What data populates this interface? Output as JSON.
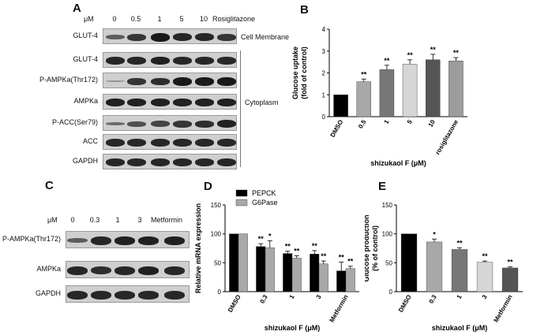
{
  "panel_a": {
    "label": "A",
    "unit": "μM",
    "lanes": [
      "0",
      "0.5",
      "1",
      "5",
      "10",
      "Rosiglitazone"
    ],
    "rows": [
      "GLUT-4",
      "GLUT-4",
      "P-AMPKa(Thr172)",
      "AMPKa",
      "P-ACC(Ser79)",
      "ACC",
      "GAPDH"
    ],
    "membrane_label": "Cell Membrane",
    "cytoplasm_label": "Cytoplasm"
  },
  "panel_c": {
    "label": "C",
    "unit": "μM",
    "lanes": [
      "0",
      "0.3",
      "1",
      "3",
      "Metformin"
    ],
    "rows": [
      "P-AMPKa(Thr172)",
      "AMPKa",
      "GAPDH"
    ]
  },
  "chart_data": [
    {
      "panel": "B",
      "type": "bar",
      "categories": [
        "DMSO",
        "0.5",
        "1",
        "5",
        "10",
        "rosiglitazone"
      ],
      "values": [
        1.0,
        1.6,
        2.15,
        2.4,
        2.6,
        2.55
      ],
      "errors": [
        0.0,
        0.12,
        0.2,
        0.2,
        0.25,
        0.15
      ],
      "significance": [
        "",
        "**",
        "**",
        "**",
        "**",
        "**"
      ],
      "colors": [
        "#000000",
        "#a8a8a8",
        "#777777",
        "#d6d6d6",
        "#555555",
        "#9c9c9c"
      ],
      "xlabel": "shizukaol F (μM)",
      "ylabel_line1": "Glucose uptake",
      "ylabel_line2": "(fold of control)",
      "ylim": [
        0,
        4
      ],
      "yticks": [
        "0",
        "1",
        "2",
        "3",
        "4"
      ]
    },
    {
      "panel": "D",
      "type": "bar",
      "categories": [
        "DMSO",
        "0.3",
        "1",
        "3",
        "Metformin"
      ],
      "series": [
        {
          "name": "PEPCK",
          "values": [
            100,
            78,
            66,
            65,
            36
          ],
          "errors": [
            0,
            5,
            4,
            6,
            15
          ],
          "significance": [
            "",
            "**",
            "**",
            "**",
            "**"
          ],
          "color": "#000000"
        },
        {
          "name": "G6Pase",
          "values": [
            100,
            76,
            58,
            48,
            40
          ],
          "errors": [
            0,
            12,
            4,
            5,
            4
          ],
          "significance": [
            "",
            "*",
            "**",
            "**",
            "**"
          ],
          "color": "#a8a8a8"
        }
      ],
      "xlabel": "shizukaol F (μM)",
      "ylabel": "Relative mRNA expression",
      "ylim": [
        0,
        150
      ],
      "yticks": [
        "0",
        "50",
        "100",
        "150"
      ]
    },
    {
      "panel": "E",
      "type": "bar",
      "categories": [
        "DMSO",
        "0.3",
        "1",
        "3",
        "Metformin"
      ],
      "values": [
        100,
        86,
        73,
        51,
        41
      ],
      "errors": [
        0,
        5,
        3,
        2,
        2
      ],
      "significance": [
        "",
        "*",
        "**",
        "**",
        "**"
      ],
      "colors": [
        "#000000",
        "#a8a8a8",
        "#777777",
        "#d6d6d6",
        "#555555"
      ],
      "xlabel": "shizukaol F (μM)",
      "ylabel_line1": "Glucose production",
      "ylabel_line2": "(% of control)",
      "ylim": [
        0,
        150
      ],
      "yticks": [
        "0",
        "50",
        "100",
        "150"
      ]
    }
  ]
}
